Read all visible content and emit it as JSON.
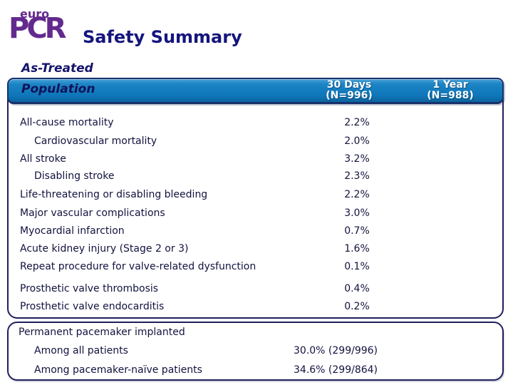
{
  "logo": {
    "top": "euro",
    "bottom": "PCR",
    "color": "#632a8e"
  },
  "title": "Safety Summary",
  "population_label": {
    "line1": "As-Treated",
    "line2": "Population"
  },
  "columns": [
    {
      "label": "30 Days",
      "n": "(N=996)"
    },
    {
      "label": "1 Year",
      "n": "(N=988)"
    }
  ],
  "colors": {
    "header_bar_blue": "#0f77ba",
    "border_navy": "#20205c",
    "text_navy": "#12123f",
    "title_blue": "#15157d",
    "logo_purple": "#632a8e"
  },
  "chart_data": {
    "type": "table",
    "title": "Safety Summary — As-Treated Population",
    "columns": [
      "30 Days (N=996)",
      "1 Year (N=988)"
    ],
    "rows": [
      {
        "label": "All-cause mortality",
        "indent": false,
        "d30": "2.2%",
        "y1": ""
      },
      {
        "label": "Cardiovascular mortality",
        "indent": true,
        "d30": "2.0%",
        "y1": ""
      },
      {
        "label": "All stroke",
        "indent": false,
        "d30": "3.2%",
        "y1": ""
      },
      {
        "label": "Disabling stroke",
        "indent": true,
        "d30": "2.3%",
        "y1": ""
      },
      {
        "label": "Life-threatening or disabling bleeding",
        "indent": false,
        "d30": "2.2%",
        "y1": ""
      },
      {
        "label": "Major vascular complications",
        "indent": false,
        "d30": "3.0%",
        "y1": ""
      },
      {
        "label": "Myocardial infarction",
        "indent": false,
        "d30": "0.7%",
        "y1": ""
      },
      {
        "label": "Acute kidney injury (Stage 2 or 3)",
        "indent": false,
        "d30": "1.6%",
        "y1": ""
      },
      {
        "label": "Repeat procedure for valve-related dysfunction",
        "indent": false,
        "d30": "0.1%",
        "y1": ""
      },
      {
        "label": "Prosthetic valve thrombosis",
        "indent": false,
        "d30": "0.4%",
        "y1": ""
      },
      {
        "label": "Prosthetic valve endocarditis",
        "indent": false,
        "d30": "0.2%",
        "y1": ""
      }
    ]
  },
  "pacemaker": {
    "title": "Permanent pacemaker implanted",
    "rows": [
      {
        "label": "Among all patients",
        "value": "30.0% (299/996)"
      },
      {
        "label": "Among pacemaker-naïve patients",
        "value": "34.6% (299/864)"
      }
    ]
  }
}
